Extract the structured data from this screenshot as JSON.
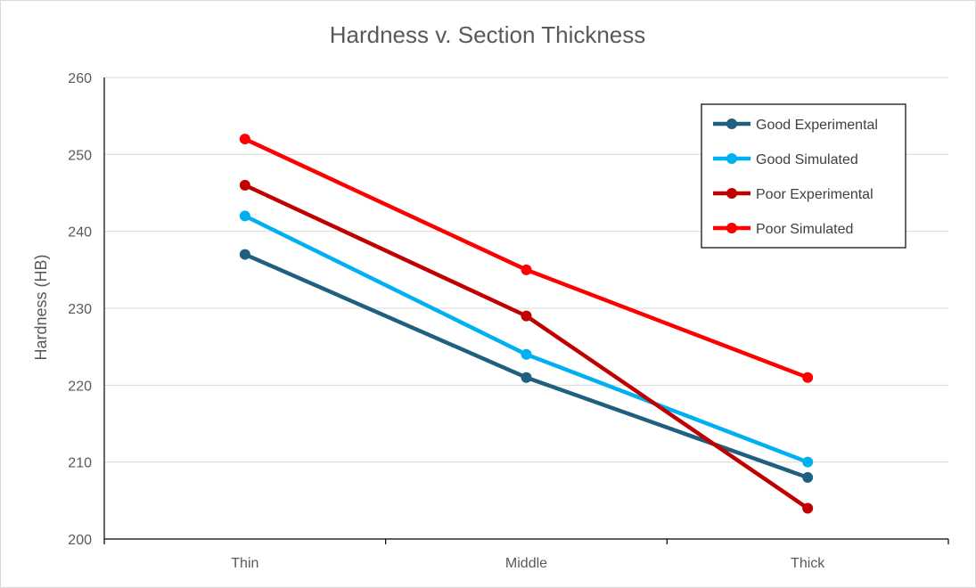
{
  "chart_data": {
    "type": "line",
    "title": "Hardness v.  Section Thickness",
    "xlabel": "",
    "ylabel": "Hardness (HB)",
    "categories": [
      "Thin",
      "Middle",
      "Thick"
    ],
    "ylim": [
      200,
      260
    ],
    "yticks": [
      "200",
      "210",
      "220",
      "230",
      "240",
      "250",
      "260"
    ],
    "grid": true,
    "legend_position": "top-right",
    "series": [
      {
        "name": "Good Experimental",
        "values": [
          237,
          221,
          208
        ],
        "color": "#1f5f7f"
      },
      {
        "name": "Good Simulated",
        "values": [
          242,
          224,
          210
        ],
        "color": "#00b0f0"
      },
      {
        "name": "Poor Experimental",
        "values": [
          246,
          229,
          204
        ],
        "color": "#c00000"
      },
      {
        "name": "Poor Simulated",
        "values": [
          252,
          235,
          221
        ],
        "color": "#ff0000"
      }
    ]
  }
}
